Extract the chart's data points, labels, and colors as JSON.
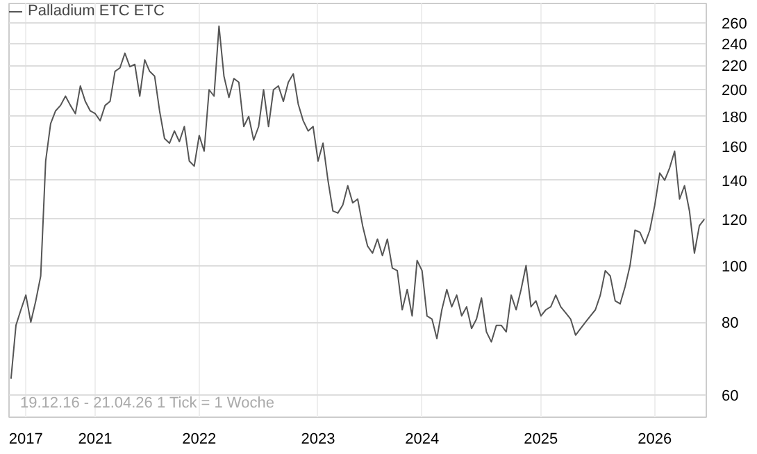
{
  "chart_data": {
    "type": "line",
    "log": "y",
    "grid": true,
    "legend": "top left",
    "marker": "none",
    "line_style": "solid",
    "annotations": [
      "19.12.16 - 21.04.26   1 Tick = 1 Woche"
    ],
    "categories": [
      null,
      null,
      null,
      "2017",
      null,
      null,
      null,
      null,
      null,
      null,
      null,
      null,
      null,
      null,
      null,
      null,
      null,
      "2021",
      null,
      null,
      null,
      null,
      null,
      null,
      null,
      null,
      null,
      null,
      null,
      null,
      null,
      null,
      null,
      null,
      null,
      null,
      null,
      null,
      "2022",
      null,
      null,
      null,
      null,
      null,
      null,
      null,
      null,
      null,
      null,
      null,
      null,
      null,
      null,
      null,
      null,
      null,
      null,
      null,
      null,
      null,
      null,
      null,
      "2023",
      null,
      null,
      null,
      null,
      null,
      null,
      null,
      null,
      null,
      null,
      null,
      null,
      null,
      null,
      null,
      null,
      null,
      null,
      null,
      null,
      "2024",
      null,
      null,
      null,
      null,
      null,
      null,
      null,
      null,
      null,
      null,
      null,
      null,
      null,
      null,
      null,
      null,
      null,
      null,
      null,
      null,
      null,
      null,
      null,
      "2025",
      null,
      null,
      null,
      null,
      null,
      null,
      null,
      null,
      null,
      null,
      null,
      null,
      null,
      null,
      null,
      null,
      null,
      null,
      null,
      null,
      null,
      null,
      "2026",
      null,
      null,
      null,
      null,
      null,
      null,
      null,
      null,
      null,
      null
    ],
    "ylim": [
      55,
      281
    ],
    "yticks": [
      60,
      80,
      100,
      120,
      140,
      160,
      180,
      200,
      220,
      240,
      260
    ],
    "series": [
      {
        "name": "Palladium ETC ETC",
        "color": "#555555",
        "values": [
          64,
          79,
          84,
          89,
          80,
          87,
          96,
          151,
          175,
          184,
          188,
          195,
          188,
          182,
          203,
          191,
          184,
          182,
          177,
          188,
          191,
          215,
          218,
          231,
          219,
          221,
          195,
          225,
          215,
          211,
          184,
          165,
          162,
          170,
          163,
          173,
          151,
          148,
          167,
          157,
          200,
          195,
          257,
          211,
          194,
          209,
          206,
          173,
          180,
          164,
          173,
          200,
          173,
          200,
          203,
          191,
          206,
          213,
          189,
          177,
          170,
          173,
          151,
          162,
          140,
          124,
          123,
          127,
          137,
          128,
          130,
          117,
          108,
          105,
          111,
          104,
          111,
          99,
          98,
          84,
          91,
          82,
          102,
          98,
          82,
          81,
          75,
          84,
          91,
          85,
          89,
          82,
          85,
          78,
          81,
          88,
          77,
          74,
          79,
          79,
          77,
          89,
          84,
          91,
          100,
          85,
          87,
          82,
          84,
          85,
          89,
          85,
          83,
          81,
          76,
          78,
          80,
          82,
          84,
          89,
          98,
          96,
          87,
          86,
          92,
          100,
          115,
          114,
          109,
          115,
          127,
          144,
          140,
          147,
          157,
          130,
          137,
          124,
          105,
          117,
          120
        ]
      }
    ]
  }
}
